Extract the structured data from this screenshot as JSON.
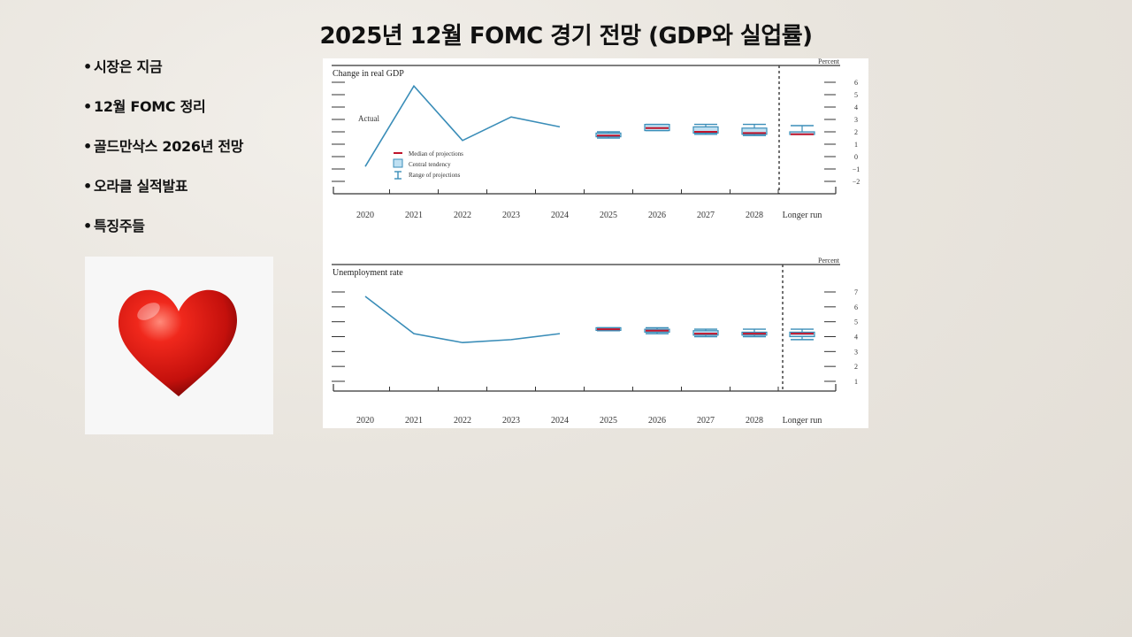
{
  "slide": {
    "title": "2025년 12월  FOMC 경기 전망 (GDP와 실업률)",
    "bullets": [
      "시장은 지금",
      "12월 FOMC 정리",
      "골드만삭스 2026년 전망",
      "오라클 실적발표",
      "특징주들"
    ]
  },
  "image": {
    "icon": "heart-icon",
    "color": "#e0201a"
  },
  "legend": {
    "median": "Median of projections",
    "central": "Central tendency",
    "range": "Range of projections"
  },
  "chart_data": [
    {
      "type": "line",
      "title": "Change in real GDP",
      "unit_label": "Percent",
      "actual_label": "Actual",
      "categories": [
        "2020",
        "2021",
        "2022",
        "2023",
        "2024",
        "2025",
        "2026",
        "2027",
        "2028",
        "Longer run"
      ],
      "ylim": [
        -2,
        7
      ],
      "yticks": [
        "6",
        "5",
        "4",
        "3",
        "2",
        "1",
        "0",
        "−1",
        "−2"
      ],
      "actual": [
        -0.8,
        5.7,
        1.3,
        3.2,
        2.4
      ],
      "projections": [
        {
          "x": "2025",
          "median": 1.7,
          "central": [
            1.6,
            1.9
          ],
          "range": [
            1.5,
            2.0
          ]
        },
        {
          "x": "2026",
          "median": 2.3,
          "central": [
            2.1,
            2.6
          ],
          "range": [
            2.1,
            2.6
          ]
        },
        {
          "x": "2027",
          "median": 2.0,
          "central": [
            1.9,
            2.4
          ],
          "range": [
            1.8,
            2.6
          ]
        },
        {
          "x": "2028",
          "median": 1.9,
          "central": [
            1.8,
            2.3
          ],
          "range": [
            1.7,
            2.6
          ]
        },
        {
          "x": "Longer run",
          "median": 1.8,
          "central": [
            1.8,
            2.0
          ],
          "range": [
            1.8,
            2.5
          ]
        }
      ],
      "colors": {
        "line": "#3a8db8",
        "median": "#c0142b",
        "box_fill": "#bfe0f2",
        "box_stroke": "#3a8db8"
      }
    },
    {
      "type": "line",
      "title": "Unemployment rate",
      "unit_label": "Percent",
      "categories": [
        "2020",
        "2021",
        "2022",
        "2023",
        "2024",
        "2025",
        "2026",
        "2027",
        "2028",
        "Longer run"
      ],
      "ylim": [
        0,
        8
      ],
      "yticks": [
        "7",
        "6",
        "5",
        "4",
        "3",
        "2",
        "1"
      ],
      "actual": [
        6.7,
        4.2,
        3.6,
        3.8,
        4.2
      ],
      "projections": [
        {
          "x": "2025",
          "median": 4.5,
          "central": [
            4.5,
            4.6
          ],
          "range": [
            4.4,
            4.6
          ]
        },
        {
          "x": "2026",
          "median": 4.4,
          "central": [
            4.3,
            4.5
          ],
          "range": [
            4.2,
            4.6
          ]
        },
        {
          "x": "2027",
          "median": 4.2,
          "central": [
            4.1,
            4.4
          ],
          "range": [
            4.0,
            4.5
          ]
        },
        {
          "x": "2028",
          "median": 4.2,
          "central": [
            4.1,
            4.3
          ],
          "range": [
            4.0,
            4.5
          ]
        },
        {
          "x": "Longer run",
          "median": 4.2,
          "central": [
            4.0,
            4.3
          ],
          "range": [
            3.8,
            4.5
          ]
        }
      ],
      "colors": {
        "line": "#3a8db8",
        "median": "#c0142b",
        "box_fill": "#bfe0f2",
        "box_stroke": "#3a8db8"
      }
    }
  ]
}
